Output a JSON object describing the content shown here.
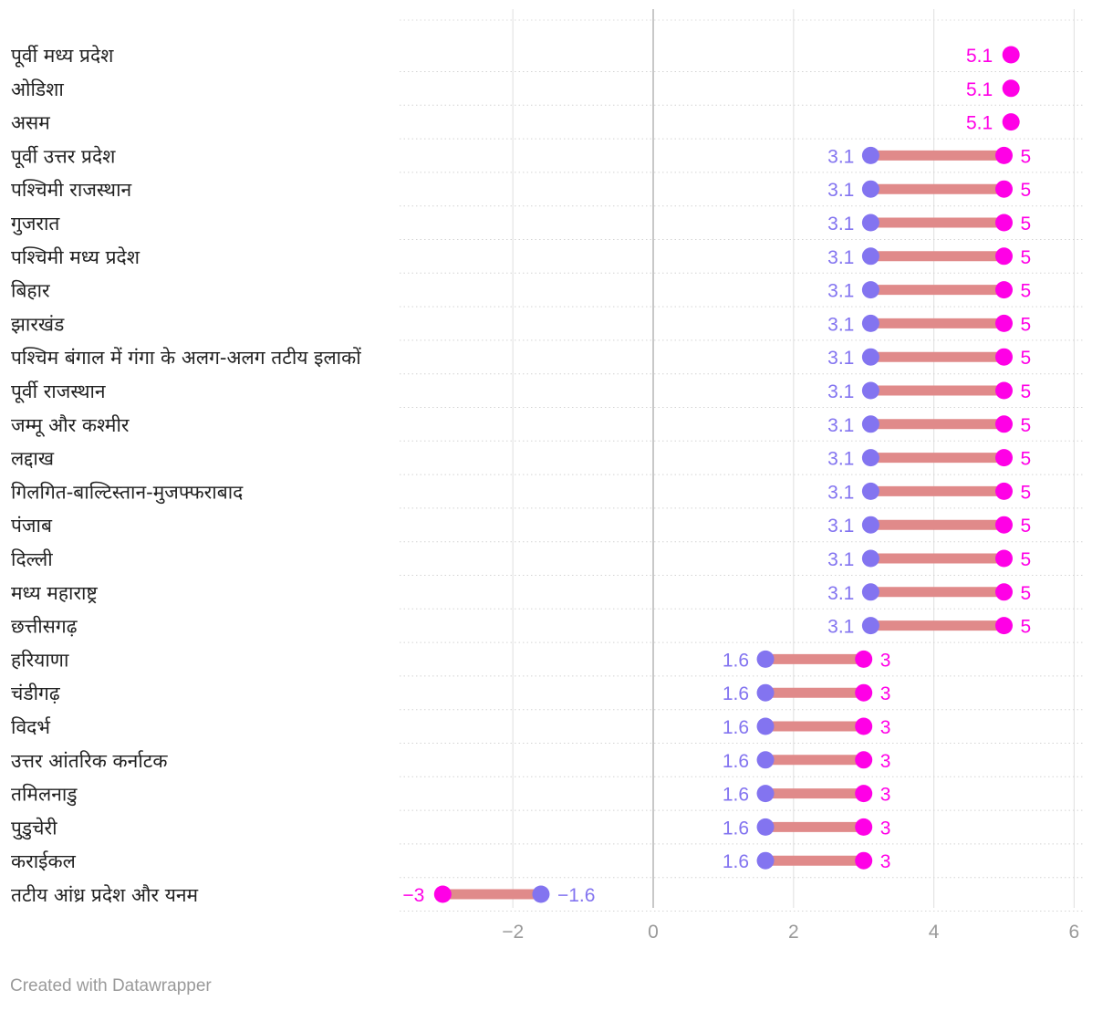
{
  "chart_data": {
    "type": "dumbbell",
    "title": "",
    "xlabel": "",
    "ylabel": "",
    "xlim": [
      -3.6,
      6.1
    ],
    "xticks": [
      -2,
      0,
      2,
      4,
      6
    ],
    "xtick_labels": [
      "−2",
      "0",
      "2",
      "4",
      "6"
    ],
    "grid": true,
    "series": [
      {
        "name": "start",
        "color": "#8374f0"
      },
      {
        "name": "end",
        "color": "#ff00e6"
      }
    ],
    "bar_color": "#e08a8a",
    "rows": [
      {
        "label": "पूर्वी मध्य प्रदेश",
        "start": null,
        "end": 5.1,
        "start_label": "",
        "end_label": "5.1"
      },
      {
        "label": "ओडिशा",
        "start": null,
        "end": 5.1,
        "start_label": "",
        "end_label": "5.1"
      },
      {
        "label": "असम",
        "start": null,
        "end": 5.1,
        "start_label": "",
        "end_label": "5.1"
      },
      {
        "label": "पूर्वी उत्तर प्रदेश",
        "start": 3.1,
        "end": 5,
        "start_label": "3.1",
        "end_label": "5"
      },
      {
        "label": "पश्चिमी राजस्थान",
        "start": 3.1,
        "end": 5,
        "start_label": "3.1",
        "end_label": "5"
      },
      {
        "label": "गुजरात",
        "start": 3.1,
        "end": 5,
        "start_label": "3.1",
        "end_label": "5"
      },
      {
        "label": "पश्चिमी मध्य प्रदेश",
        "start": 3.1,
        "end": 5,
        "start_label": "3.1",
        "end_label": "5"
      },
      {
        "label": "बिहार",
        "start": 3.1,
        "end": 5,
        "start_label": "3.1",
        "end_label": "5"
      },
      {
        "label": "झारखंड",
        "start": 3.1,
        "end": 5,
        "start_label": "3.1",
        "end_label": "5"
      },
      {
        "label": "पश्चिम बंगाल में गंगा के अलग-अलग तटीय इलाकों",
        "start": 3.1,
        "end": 5,
        "start_label": "3.1",
        "end_label": "5"
      },
      {
        "label": "पूर्वी राजस्थान",
        "start": 3.1,
        "end": 5,
        "start_label": "3.1",
        "end_label": "5"
      },
      {
        "label": "जम्मू और कश्मीर",
        "start": 3.1,
        "end": 5,
        "start_label": "3.1",
        "end_label": "5"
      },
      {
        "label": "लद्दाख",
        "start": 3.1,
        "end": 5,
        "start_label": "3.1",
        "end_label": "5"
      },
      {
        "label": "गिलगित-बाल्टिस्तान-मुजफ्फराबाद",
        "start": 3.1,
        "end": 5,
        "start_label": "3.1",
        "end_label": "5"
      },
      {
        "label": "पंजाब",
        "start": 3.1,
        "end": 5,
        "start_label": "3.1",
        "end_label": "5"
      },
      {
        "label": "दिल्ली",
        "start": 3.1,
        "end": 5,
        "start_label": "3.1",
        "end_label": "5"
      },
      {
        "label": "मध्य महाराष्ट्र",
        "start": 3.1,
        "end": 5,
        "start_label": "3.1",
        "end_label": "5"
      },
      {
        "label": "छत्तीसगढ़",
        "start": 3.1,
        "end": 5,
        "start_label": "3.1",
        "end_label": "5"
      },
      {
        "label": "हरियाणा",
        "start": 1.6,
        "end": 3,
        "start_label": "1.6",
        "end_label": "3"
      },
      {
        "label": "चंडीगढ़",
        "start": 1.6,
        "end": 3,
        "start_label": "1.6",
        "end_label": "3"
      },
      {
        "label": "विदर्भ",
        "start": 1.6,
        "end": 3,
        "start_label": "1.6",
        "end_label": "3"
      },
      {
        "label": "उत्तर आंतरिक कर्नाटक",
        "start": 1.6,
        "end": 3,
        "start_label": "1.6",
        "end_label": "3"
      },
      {
        "label": "तमिलनाडु",
        "start": 1.6,
        "end": 3,
        "start_label": "1.6",
        "end_label": "3"
      },
      {
        "label": "पुडुचेरी",
        "start": 1.6,
        "end": 3,
        "start_label": "1.6",
        "end_label": "3"
      },
      {
        "label": "कराईकल",
        "start": 1.6,
        "end": 3,
        "start_label": "1.6",
        "end_label": "3"
      },
      {
        "label": "तटीय आंध्र प्रदेश और यनम",
        "start": -1.6,
        "end": -3,
        "start_label": "−1.6",
        "end_label": "−3"
      }
    ]
  },
  "footer": {
    "credit": "Created with Datawrapper"
  }
}
